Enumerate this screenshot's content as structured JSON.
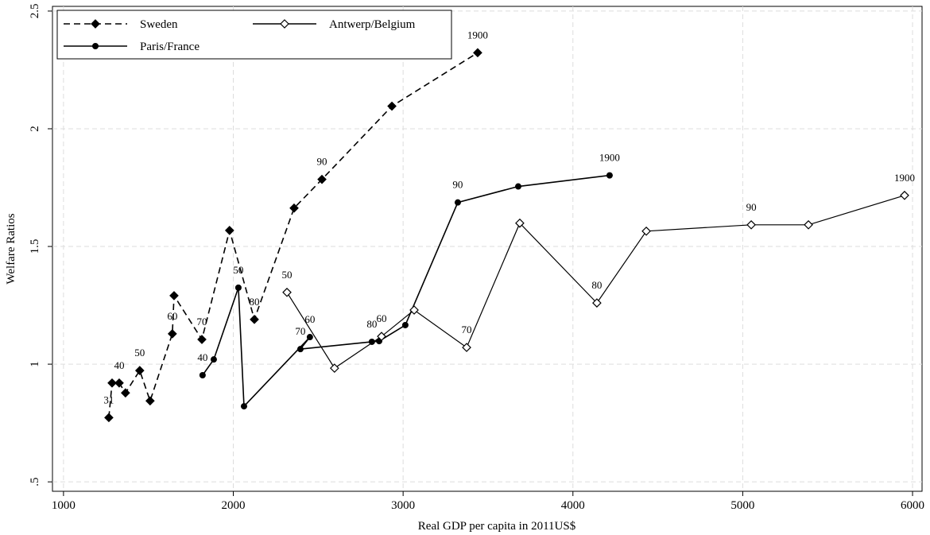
{
  "chart_data": {
    "type": "line",
    "xlabel": "Real GDP per capita in 2011US$",
    "ylabel": "Welfare Ratios",
    "xlim": [
      935,
      6056
    ],
    "ylim": [
      0.46,
      2.52
    ],
    "xticks": [
      1000,
      2000,
      3000,
      4000,
      5000,
      6000
    ],
    "yticks": [
      {
        "value": 0.5,
        "label": ".5"
      },
      1,
      1.5,
      2,
      2.5
    ],
    "grid": true,
    "legend": "upper left",
    "series": [
      {
        "name": "Sweden",
        "color": "#000000",
        "line_style": "dashed",
        "marker": "diamond",
        "x": [
          1267,
          1286,
          1328,
          1365,
          1449,
          1510,
          1641,
          1651,
          1815,
          1978,
          2124,
          2358,
          2522,
          2934,
          3439
        ],
        "values": [
          0.773,
          0.92,
          0.92,
          0.878,
          0.973,
          0.844,
          1.129,
          1.291,
          1.105,
          1.568,
          1.19,
          1.663,
          1.785,
          2.096,
          2.323
        ],
        "point_labels": [
          "31",
          null,
          "40",
          null,
          "50",
          null,
          "60",
          null,
          "70",
          null,
          "80",
          null,
          "90",
          null,
          "1900"
        ]
      },
      {
        "name": "Paris/France",
        "color": "#000000",
        "line_style": "solid",
        "marker": "circle",
        "x": [
          1819,
          1885,
          2030,
          2063,
          2451,
          2395,
          2816,
          2859,
          3013,
          3322,
          3678,
          4216
        ],
        "values": [
          0.953,
          1.02,
          1.325,
          0.821,
          1.115,
          1.064,
          1.095,
          1.098,
          1.166,
          1.687,
          1.755,
          1.802
        ],
        "point_labels": [
          "40",
          null,
          "50",
          null,
          "60",
          "70",
          "80",
          null,
          null,
          "90",
          null,
          "1900"
        ]
      },
      {
        "name": "Antwerp/Belgium",
        "color": "#000000",
        "line_style": "solid",
        "marker": "hollow-diamond",
        "x": [
          2316,
          2596,
          2873,
          3065,
          3374,
          3687,
          4141,
          4432,
          5050,
          5387,
          5953
        ],
        "values": [
          1.305,
          0.983,
          1.118,
          1.23,
          1.071,
          1.599,
          1.26,
          1.565,
          1.592,
          1.592,
          1.717
        ],
        "point_labels": [
          "50",
          null,
          "60",
          null,
          "70",
          null,
          "80",
          null,
          "90",
          null,
          "1900"
        ]
      }
    ]
  }
}
